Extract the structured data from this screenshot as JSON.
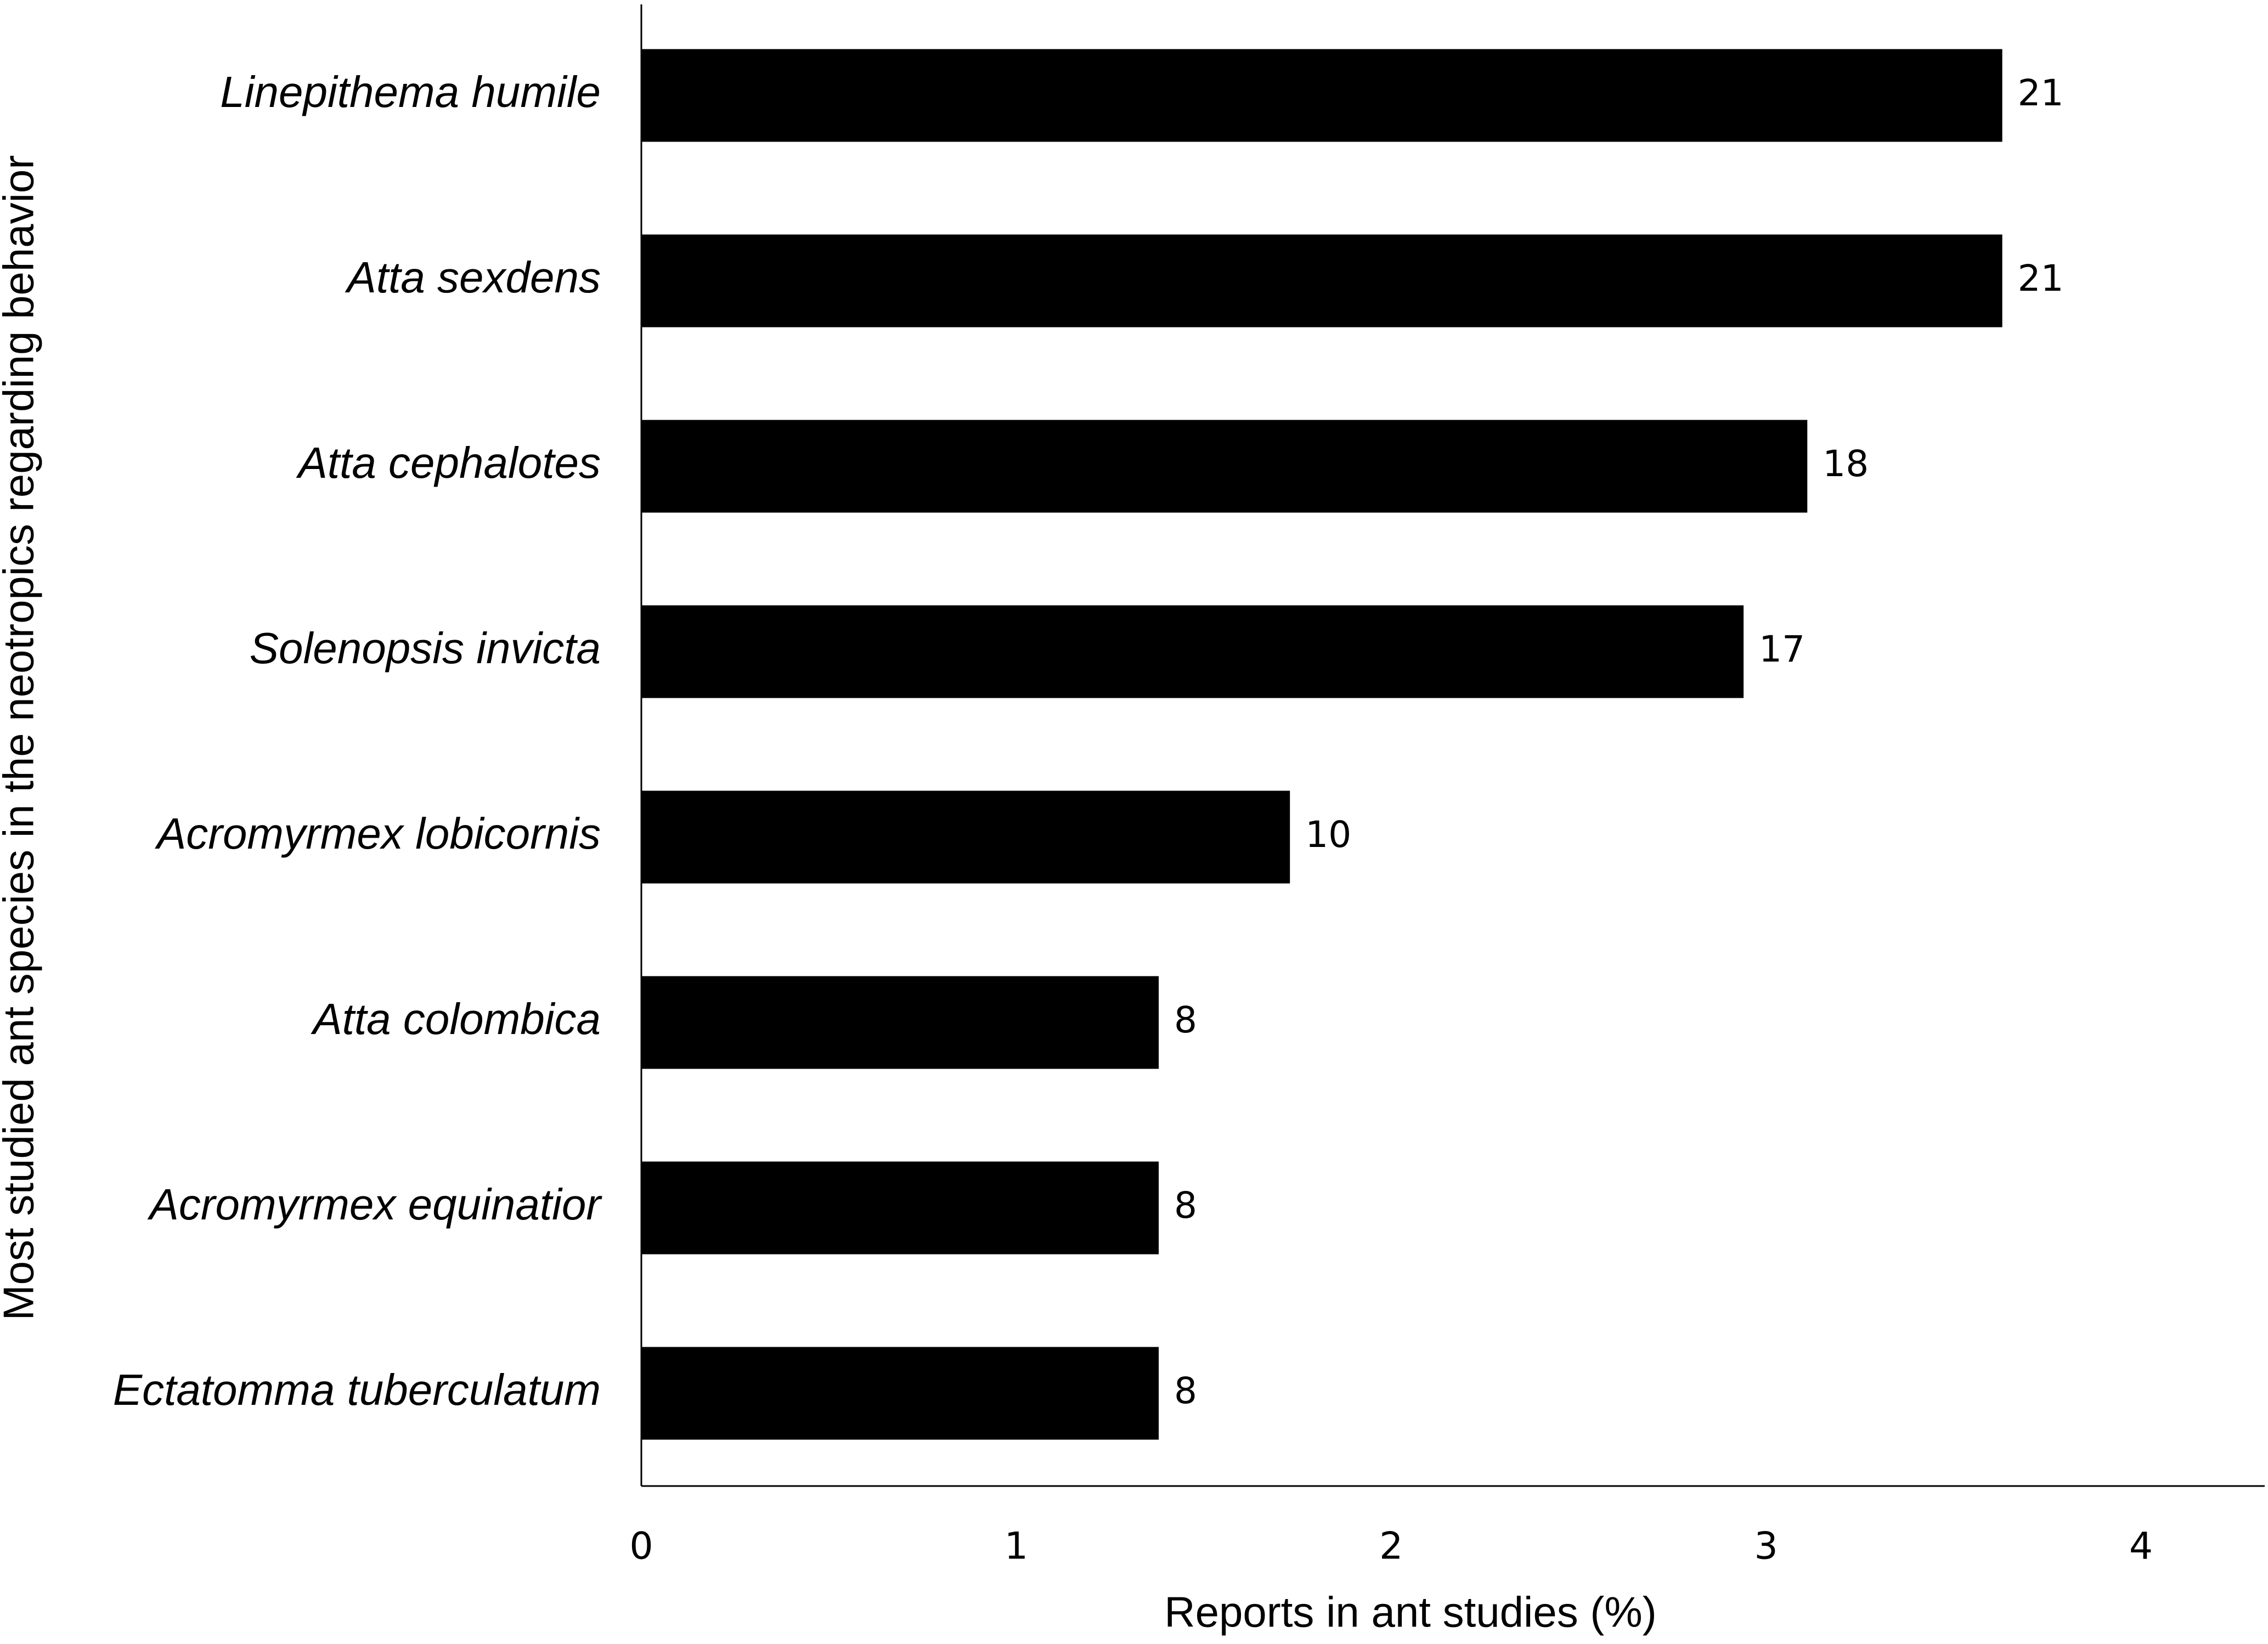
{
  "chart_data": {
    "type": "barh",
    "x_label": "Reports in ant studies (%)",
    "y_label": "Most studied ant species in the neotropics regarding behavior",
    "categories": [
      "Linepithema humile",
      "Atta sexdens",
      "Atta cephalotes",
      "Solenopsis invicta",
      "Acromyrmex lobicornis",
      "Atta colombica",
      "Acromyrmex equinatior",
      "Ectatomma tuberculatum"
    ],
    "values": [
      3.63,
      3.63,
      3.11,
      2.94,
      1.73,
      1.38,
      1.38,
      1.38
    ],
    "counts": [
      21,
      21,
      18,
      17,
      10,
      8,
      8,
      8
    ],
    "color": "#000000",
    "xlim": [
      0,
      4.33
    ],
    "xticks": [
      0,
      1,
      2,
      3,
      4
    ],
    "grid": false
  }
}
